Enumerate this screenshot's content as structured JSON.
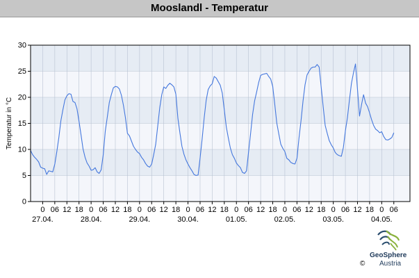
{
  "header": {
    "title": "Mooslandl - Temperatur"
  },
  "logo": {
    "name": "GeoSphere",
    "subtitle": "Austria",
    "copyright": "©"
  },
  "chart_data": {
    "type": "line",
    "title": "Mooslandl - Temperatur",
    "ylabel": "Temperatur in °C",
    "xlabel": "",
    "ylim": [
      0,
      30
    ],
    "yticks": [
      0,
      5,
      10,
      15,
      20,
      25,
      30
    ],
    "x_unit": "hours since 27.04. 00:00",
    "xlim": [
      -6,
      182
    ],
    "hour_ticks": [
      {
        "h": 0,
        "label": "0"
      },
      {
        "h": 6,
        "label": "06"
      },
      {
        "h": 12,
        "label": "12"
      },
      {
        "h": 18,
        "label": "18"
      },
      {
        "h": 24,
        "label": "0"
      },
      {
        "h": 30,
        "label": "06"
      },
      {
        "h": 36,
        "label": "12"
      },
      {
        "h": 42,
        "label": "18"
      },
      {
        "h": 48,
        "label": "0"
      },
      {
        "h": 54,
        "label": "06"
      },
      {
        "h": 60,
        "label": "12"
      },
      {
        "h": 66,
        "label": "18"
      },
      {
        "h": 72,
        "label": "0"
      },
      {
        "h": 78,
        "label": "06"
      },
      {
        "h": 84,
        "label": "12"
      },
      {
        "h": 90,
        "label": "18"
      },
      {
        "h": 96,
        "label": "0"
      },
      {
        "h": 102,
        "label": "06"
      },
      {
        "h": 108,
        "label": "12"
      },
      {
        "h": 114,
        "label": "18"
      },
      {
        "h": 120,
        "label": "0"
      },
      {
        "h": 126,
        "label": "06"
      },
      {
        "h": 132,
        "label": "12"
      },
      {
        "h": 138,
        "label": "18"
      },
      {
        "h": 144,
        "label": "0"
      },
      {
        "h": 150,
        "label": "06"
      },
      {
        "h": 156,
        "label": "12"
      },
      {
        "h": 162,
        "label": "18"
      },
      {
        "h": 168,
        "label": "0"
      },
      {
        "h": 174,
        "label": "06"
      }
    ],
    "date_labels": [
      {
        "h": 0,
        "label": "27.04."
      },
      {
        "h": 24,
        "label": "28.04."
      },
      {
        "h": 48,
        "label": "29.04."
      },
      {
        "h": 72,
        "label": "30.04."
      },
      {
        "h": 96,
        "label": "01.05."
      },
      {
        "h": 120,
        "label": "02.05."
      },
      {
        "h": 144,
        "label": "03.05."
      },
      {
        "h": 168,
        "label": "04.05."
      }
    ],
    "series": [
      {
        "color": "#4477dd",
        "points": [
          [
            -6,
            9.8
          ],
          [
            -5,
            9.0
          ],
          [
            -4,
            8.5
          ],
          [
            -3,
            8.1
          ],
          [
            -2,
            7.6
          ],
          [
            -1,
            6.6
          ],
          [
            0,
            6.4
          ],
          [
            1,
            6.3
          ],
          [
            2,
            5.2
          ],
          [
            3,
            5.9
          ],
          [
            4,
            5.8
          ],
          [
            5,
            5.7
          ],
          [
            6,
            7.2
          ],
          [
            7,
            9.6
          ],
          [
            8,
            12.3
          ],
          [
            9,
            15.5
          ],
          [
            10,
            17.6
          ],
          [
            11,
            19.5
          ],
          [
            12,
            20.3
          ],
          [
            13,
            20.7
          ],
          [
            14,
            20.6
          ],
          [
            15,
            19.2
          ],
          [
            16,
            19.0
          ],
          [
            17,
            17.8
          ],
          [
            18,
            15.4
          ],
          [
            19,
            12.8
          ],
          [
            20,
            10.1
          ],
          [
            21,
            8.5
          ],
          [
            22,
            7.4
          ],
          [
            23,
            6.8
          ],
          [
            24,
            6.0
          ],
          [
            25,
            6.1
          ],
          [
            26,
            6.5
          ],
          [
            27,
            5.7
          ],
          [
            28,
            5.4
          ],
          [
            29,
            6.1
          ],
          [
            30,
            9.0
          ],
          [
            31,
            13.5
          ],
          [
            32,
            16.2
          ],
          [
            33,
            19.0
          ],
          [
            34,
            20.5
          ],
          [
            35,
            21.8
          ],
          [
            36,
            22.1
          ],
          [
            37,
            22.0
          ],
          [
            38,
            21.6
          ],
          [
            39,
            20.4
          ],
          [
            40,
            18.5
          ],
          [
            41,
            16.1
          ],
          [
            42,
            13.1
          ],
          [
            43,
            12.6
          ],
          [
            44,
            11.6
          ],
          [
            45,
            10.6
          ],
          [
            46,
            10.0
          ],
          [
            47,
            9.5
          ],
          [
            48,
            9.2
          ],
          [
            49,
            8.5
          ],
          [
            50,
            8.0
          ],
          [
            51,
            7.3
          ],
          [
            52,
            6.8
          ],
          [
            53,
            6.6
          ],
          [
            54,
            7.2
          ],
          [
            55,
            9.0
          ],
          [
            56,
            11.0
          ],
          [
            57,
            14.5
          ],
          [
            58,
            18.0
          ],
          [
            59,
            20.5
          ],
          [
            60,
            22.0
          ],
          [
            61,
            21.7
          ],
          [
            62,
            22.3
          ],
          [
            63,
            22.7
          ],
          [
            64,
            22.4
          ],
          [
            65,
            22.0
          ],
          [
            66,
            20.6
          ],
          [
            67,
            16.0
          ],
          [
            68,
            13.2
          ],
          [
            69,
            10.6
          ],
          [
            70,
            9.1
          ],
          [
            71,
            8.0
          ],
          [
            72,
            7.2
          ],
          [
            73,
            6.5
          ],
          [
            74,
            5.9
          ],
          [
            75,
            5.2
          ],
          [
            76,
            5.0
          ],
          [
            77,
            5.1
          ],
          [
            78,
            8.4
          ],
          [
            79,
            12.0
          ],
          [
            80,
            16.0
          ],
          [
            81,
            19.4
          ],
          [
            82,
            21.5
          ],
          [
            83,
            22.2
          ],
          [
            84,
            22.6
          ],
          [
            85,
            24.0
          ],
          [
            86,
            23.7
          ],
          [
            87,
            23.0
          ],
          [
            88,
            22.3
          ],
          [
            89,
            20.8
          ],
          [
            90,
            17.6
          ],
          [
            91,
            14.3
          ],
          [
            92,
            12.2
          ],
          [
            93,
            10.3
          ],
          [
            94,
            9.0
          ],
          [
            95,
            8.3
          ],
          [
            96,
            7.4
          ],
          [
            97,
            6.9
          ],
          [
            98,
            6.5
          ],
          [
            99,
            5.6
          ],
          [
            100,
            5.4
          ],
          [
            101,
            5.9
          ],
          [
            102,
            9.5
          ],
          [
            103,
            13.0
          ],
          [
            104,
            16.7
          ],
          [
            105,
            19.3
          ],
          [
            106,
            21.0
          ],
          [
            107,
            22.8
          ],
          [
            108,
            24.2
          ],
          [
            109,
            24.4
          ],
          [
            110,
            24.5
          ],
          [
            111,
            24.6
          ],
          [
            112,
            24.0
          ],
          [
            113,
            23.5
          ],
          [
            114,
            22.1
          ],
          [
            115,
            18.7
          ],
          [
            116,
            15.1
          ],
          [
            117,
            13.0
          ],
          [
            118,
            11.0
          ],
          [
            119,
            10.2
          ],
          [
            120,
            9.6
          ],
          [
            121,
            8.3
          ],
          [
            122,
            8.0
          ],
          [
            123,
            7.5
          ],
          [
            124,
            7.3
          ],
          [
            125,
            7.2
          ],
          [
            126,
            8.3
          ],
          [
            127,
            12.2
          ],
          [
            128,
            15.5
          ],
          [
            129,
            19.3
          ],
          [
            130,
            22.4
          ],
          [
            131,
            24.3
          ],
          [
            132,
            25.0
          ],
          [
            133,
            25.6
          ],
          [
            134,
            25.8
          ],
          [
            135,
            25.8
          ],
          [
            136,
            26.3
          ],
          [
            137,
            25.8
          ],
          [
            138,
            22.0
          ],
          [
            139,
            18.2
          ],
          [
            140,
            14.6
          ],
          [
            141,
            13.1
          ],
          [
            142,
            11.7
          ],
          [
            143,
            10.9
          ],
          [
            144,
            10.3
          ],
          [
            145,
            9.4
          ],
          [
            146,
            9.0
          ],
          [
            147,
            8.8
          ],
          [
            148,
            8.7
          ],
          [
            149,
            10.4
          ],
          [
            150,
            13.6
          ],
          [
            151,
            16.1
          ],
          [
            152,
            19.5
          ],
          [
            153,
            22.7
          ],
          [
            154,
            24.7
          ],
          [
            155,
            26.4
          ],
          [
            156,
            21.5
          ],
          [
            157,
            16.4
          ],
          [
            158,
            18.6
          ],
          [
            159,
            20.5
          ],
          [
            160,
            18.9
          ],
          [
            161,
            18.2
          ],
          [
            162,
            17.0
          ],
          [
            163,
            15.7
          ],
          [
            164,
            14.6
          ],
          [
            165,
            13.9
          ],
          [
            166,
            13.6
          ],
          [
            167,
            13.2
          ],
          [
            168,
            13.4
          ],
          [
            169,
            12.5
          ],
          [
            170,
            11.9
          ],
          [
            171,
            11.8
          ],
          [
            172,
            12.0
          ],
          [
            173,
            12.3
          ],
          [
            174,
            13.2
          ]
        ]
      }
    ],
    "grid": true,
    "band_colors": [
      "#e6ecf4",
      "#f4f6fb"
    ],
    "legend": "none"
  }
}
